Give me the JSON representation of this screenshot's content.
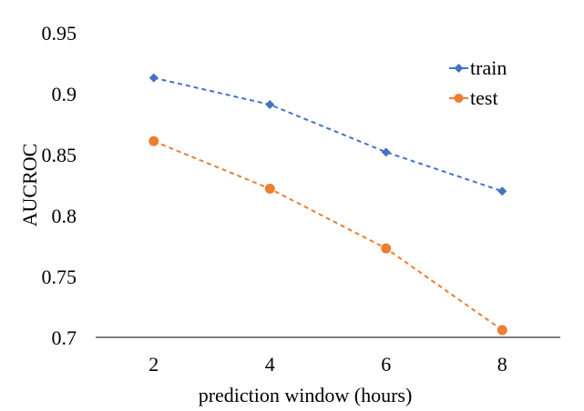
{
  "chart_data": {
    "type": "line",
    "x": [
      2,
      4,
      6,
      8
    ],
    "xlabel": "prediction window (hours)",
    "ylabel": "AUCROC",
    "xlim": [
      1,
      9
    ],
    "ylim": [
      0.7,
      0.95
    ],
    "xticks": [
      "2",
      "4",
      "6",
      "8"
    ],
    "yticks": [
      "0.7",
      "0.75",
      "0.8",
      "0.85",
      "0.9",
      "0.95"
    ],
    "grid": false,
    "legend_position": "top-right",
    "series": [
      {
        "name": "train",
        "values": [
          0.913,
          0.891,
          0.852,
          0.82
        ],
        "color": "#4472C4",
        "marker": "diamond",
        "line_style": "dashed"
      },
      {
        "name": "test",
        "values": [
          0.861,
          0.822,
          0.773,
          0.706
        ],
        "color": "#ED7D31",
        "marker": "circle",
        "line_style": "dashed"
      }
    ]
  }
}
